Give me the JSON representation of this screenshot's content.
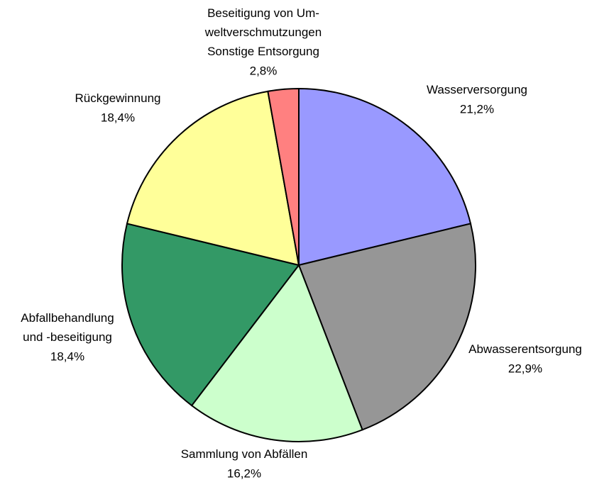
{
  "chart_data": {
    "type": "pie",
    "categories": [
      "Wasserversorgung",
      "Abwasserentsorgung",
      "Sammlung von Abfällen",
      "Abfallbehandlung\nund -beseitigung",
      "Rückgewinnung",
      "Beseitigung von Um-\nweltverschmutzungen\nSonstige Entsorgung"
    ],
    "values": [
      21.2,
      22.9,
      16.2,
      18.4,
      18.4,
      2.8
    ],
    "value_labels": [
      "21,2%",
      "22,9%",
      "16,2%",
      "18,4%",
      "18,4%",
      "2,8%"
    ],
    "colors": [
      "#9999ff",
      "#969696",
      "#ccffcc",
      "#339966",
      "#ffff99",
      "#ff8080"
    ]
  }
}
